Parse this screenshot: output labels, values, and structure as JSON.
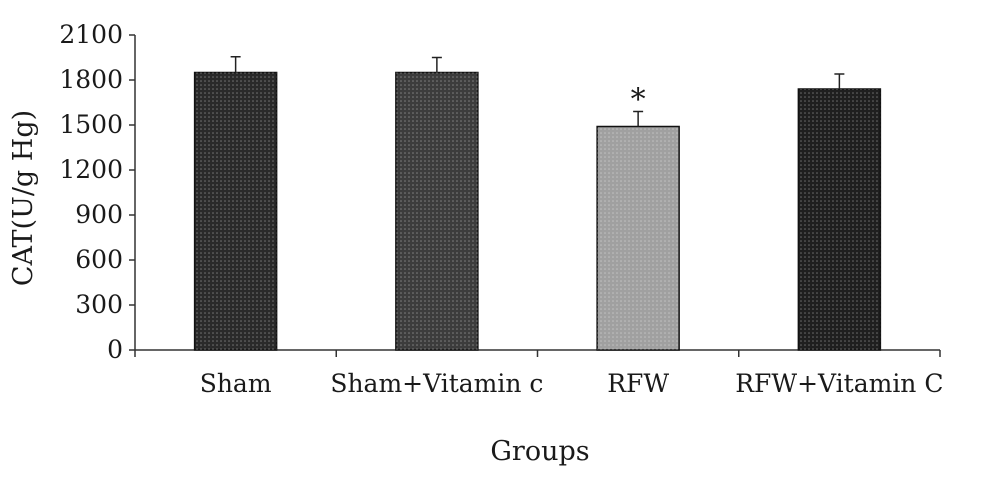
{
  "chart_data": {
    "type": "bar",
    "title": "",
    "xlabel": "Groups",
    "ylabel": "CAT(U/g Hg)",
    "categories": [
      "Sham",
      "Sham+Vitamin c",
      "RFW",
      "RFW+Vitamin C"
    ],
    "values": [
      1850,
      1850,
      1490,
      1740
    ],
    "errors": [
      105,
      100,
      100,
      100
    ],
    "annotations": [
      "",
      "",
      "*",
      ""
    ],
    "ylim": [
      0,
      2100
    ],
    "yticks": [
      "0",
      "300",
      "600",
      "900",
      "1200",
      "1500",
      "1800",
      "2100"
    ],
    "grid": false,
    "legend": "none",
    "bar_fills": [
      "#2a2a2a",
      "#3c3c3c",
      "#a0a0a0",
      "#1f1f1f"
    ]
  }
}
